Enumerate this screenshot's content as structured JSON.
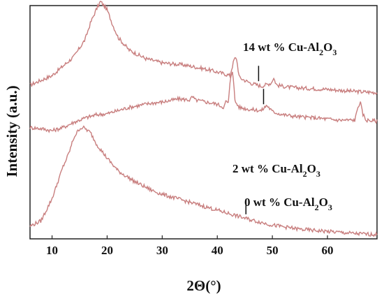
{
  "chart_data": {
    "type": "line",
    "xlabel": "2Θ(°)",
    "ylabel": "Intensity (a.u.)",
    "xlim": [
      6,
      69
    ],
    "ylim": [
      0,
      11
    ],
    "x_ticks": [
      10,
      20,
      30,
      40,
      50,
      60
    ],
    "y_ticks_shown": false,
    "grid": false,
    "line_color": "#c87e7e",
    "series": [
      {
        "label_prefix": "14 wt % Cu-Al",
        "label_sub1": "2",
        "label_mid": "O",
        "label_sub2": "3",
        "points": [
          [
            6,
            7.25
          ],
          [
            10,
            7.7
          ],
          [
            14,
            8.6
          ],
          [
            16,
            9.4
          ],
          [
            17,
            10.2
          ],
          [
            18,
            10.8
          ],
          [
            18.8,
            11.2
          ],
          [
            20,
            10.8
          ],
          [
            21,
            10.1
          ],
          [
            22,
            9.5
          ],
          [
            24,
            8.9
          ],
          [
            27,
            8.5
          ],
          [
            30,
            8.3
          ],
          [
            34,
            8.2
          ],
          [
            38,
            8.0
          ],
          [
            41,
            7.8
          ],
          [
            42.3,
            7.7
          ],
          [
            43.1,
            8.5
          ],
          [
            43.5,
            8.5
          ],
          [
            44,
            7.6
          ],
          [
            46,
            7.35
          ],
          [
            48,
            7.2
          ],
          [
            49.8,
            7.35
          ],
          [
            50.2,
            7.6
          ],
          [
            50.8,
            7.25
          ],
          [
            53,
            7.15
          ],
          [
            56,
            7.1
          ],
          [
            60,
            7.05
          ],
          [
            65,
            6.95
          ],
          [
            69,
            6.9
          ]
        ],
        "marker_x": 47.5
      },
      {
        "label_prefix": "2 wt %  Cu-Al",
        "label_sub1": "2",
        "label_mid": "O",
        "label_sub2": "3",
        "points": [
          [
            6,
            5.25
          ],
          [
            8,
            5.2
          ],
          [
            10,
            5.1
          ],
          [
            12,
            5.25
          ],
          [
            14,
            5.5
          ],
          [
            16,
            5.7
          ],
          [
            18,
            5.85
          ],
          [
            20,
            5.9
          ],
          [
            22,
            6.05
          ],
          [
            24,
            6.2
          ],
          [
            26,
            6.3
          ],
          [
            28,
            6.4
          ],
          [
            30,
            6.45
          ],
          [
            33,
            6.6
          ],
          [
            35,
            6.55
          ],
          [
            35.5,
            6.7
          ],
          [
            36,
            6.55
          ],
          [
            38,
            6.45
          ],
          [
            40,
            6.35
          ],
          [
            41.2,
            6.2
          ],
          [
            41.6,
            6.5
          ],
          [
            42,
            6.4
          ],
          [
            42.4,
            7.6
          ],
          [
            42.8,
            8.0
          ],
          [
            43.2,
            6.5
          ],
          [
            44,
            6.2
          ],
          [
            46,
            6.1
          ],
          [
            48,
            6.05
          ],
          [
            49,
            6.3
          ],
          [
            50,
            6.0
          ],
          [
            52,
            5.85
          ],
          [
            55,
            5.75
          ],
          [
            58,
            5.7
          ],
          [
            62,
            5.6
          ],
          [
            65,
            5.6
          ],
          [
            65.6,
            6.3
          ],
          [
            66,
            6.4
          ],
          [
            66.4,
            5.9
          ],
          [
            67,
            5.6
          ],
          [
            69,
            5.55
          ]
        ],
        "marker_x": 48.4
      },
      {
        "label_prefix": "0 wt %  Cu-Al",
        "label_sub1": "2",
        "label_mid": "O",
        "label_sub2": "3",
        "points": [
          [
            6,
            0.6
          ],
          [
            8,
            0.85
          ],
          [
            10,
            1.9
          ],
          [
            12,
            3.4
          ],
          [
            13,
            4.0
          ],
          [
            14,
            4.8
          ],
          [
            15,
            5.2
          ],
          [
            15.6,
            5.25
          ],
          [
            16,
            5.2
          ],
          [
            17,
            5.0
          ],
          [
            18,
            4.5
          ],
          [
            20,
            3.8
          ],
          [
            22,
            3.2
          ],
          [
            25,
            2.7
          ],
          [
            28,
            2.3
          ],
          [
            30,
            2.1
          ],
          [
            34,
            1.8
          ],
          [
            38,
            1.5
          ],
          [
            42,
            1.2
          ],
          [
            46,
            0.9
          ],
          [
            50,
            0.65
          ],
          [
            55,
            0.45
          ],
          [
            60,
            0.35
          ],
          [
            65,
            0.25
          ],
          [
            69,
            0.2
          ]
        ],
        "marker_x": 45.2
      }
    ]
  }
}
